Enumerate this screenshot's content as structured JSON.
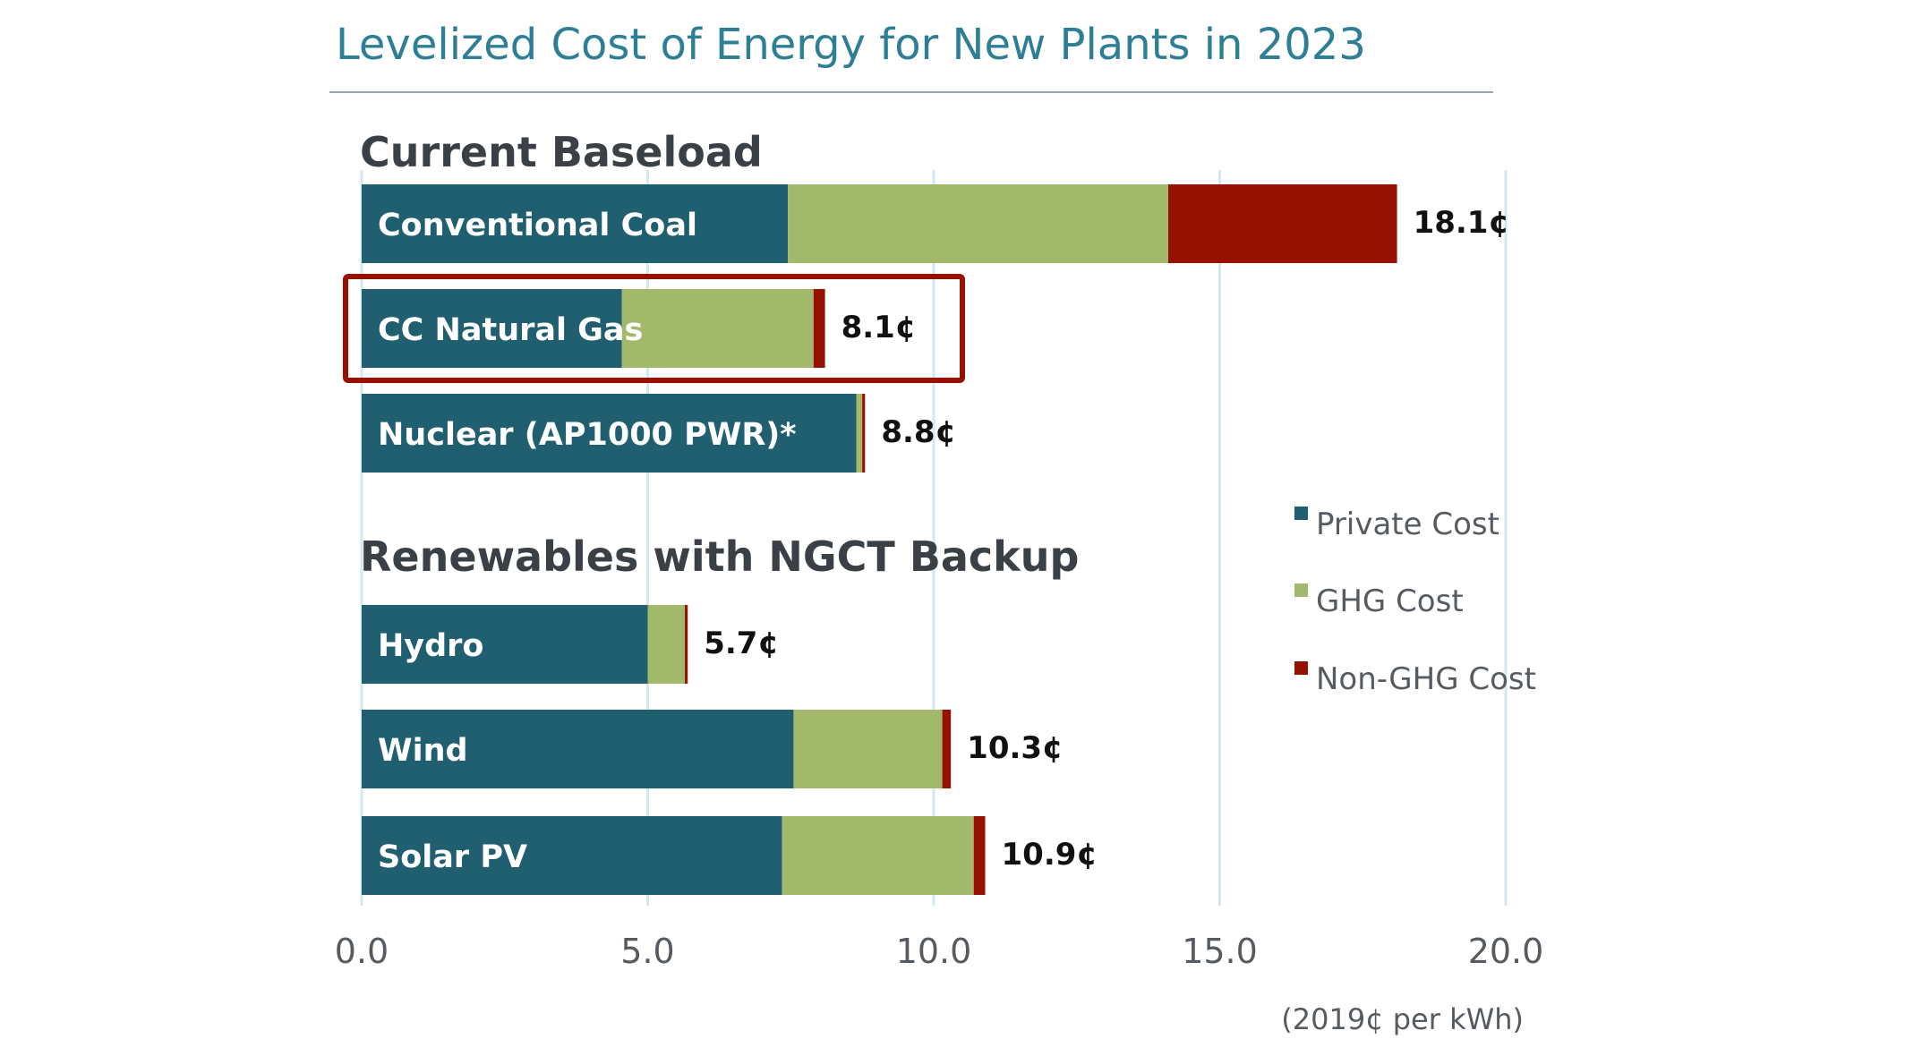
{
  "chart_data": {
    "type": "bar",
    "stacked": true,
    "orientation": "horizontal",
    "title": "Levelized Cost of Energy for New Plants in 2023",
    "unit_label": "(2019¢ per kWh)",
    "xlim": [
      0,
      20
    ],
    "xticks": [
      "0.0",
      "5.0",
      "10.0",
      "15.0",
      "20.0"
    ],
    "xtick_values": [
      0,
      5,
      10,
      15,
      20
    ],
    "legend_position": "right",
    "groups": [
      {
        "name": "Current Baseload",
        "categories": [
          "Conventional Coal",
          "CC Natural Gas",
          "Nuclear (AP1000 PWR)*"
        ]
      },
      {
        "name": "Renewables with NGCT Backup",
        "categories": [
          "Hydro",
          "Wind",
          "Solar PV"
        ]
      }
    ],
    "categories": [
      "Conventional Coal",
      "CC Natural Gas",
      "Nuclear (AP1000 PWR)*",
      "Hydro",
      "Wind",
      "Solar PV"
    ],
    "series": [
      {
        "name": "Private Cost",
        "color": "#1f5f70",
        "values": [
          7.45,
          4.55,
          8.65,
          5.0,
          7.55,
          7.35
        ]
      },
      {
        "name": "GHG Cost",
        "color": "#a2b96c",
        "values": [
          6.65,
          3.35,
          0.1,
          0.65,
          2.6,
          3.35
        ]
      },
      {
        "name": "Non-GHG Cost",
        "color": "#971100",
        "values": [
          4.0,
          0.2,
          0.05,
          0.05,
          0.15,
          0.2
        ]
      }
    ],
    "totals_labels": [
      "18.1¢",
      "8.1¢",
      "8.8¢",
      "5.7¢",
      "10.3¢",
      "10.9¢"
    ],
    "highlighted": "CC Natural Gas",
    "highlight_color": "#971100"
  }
}
